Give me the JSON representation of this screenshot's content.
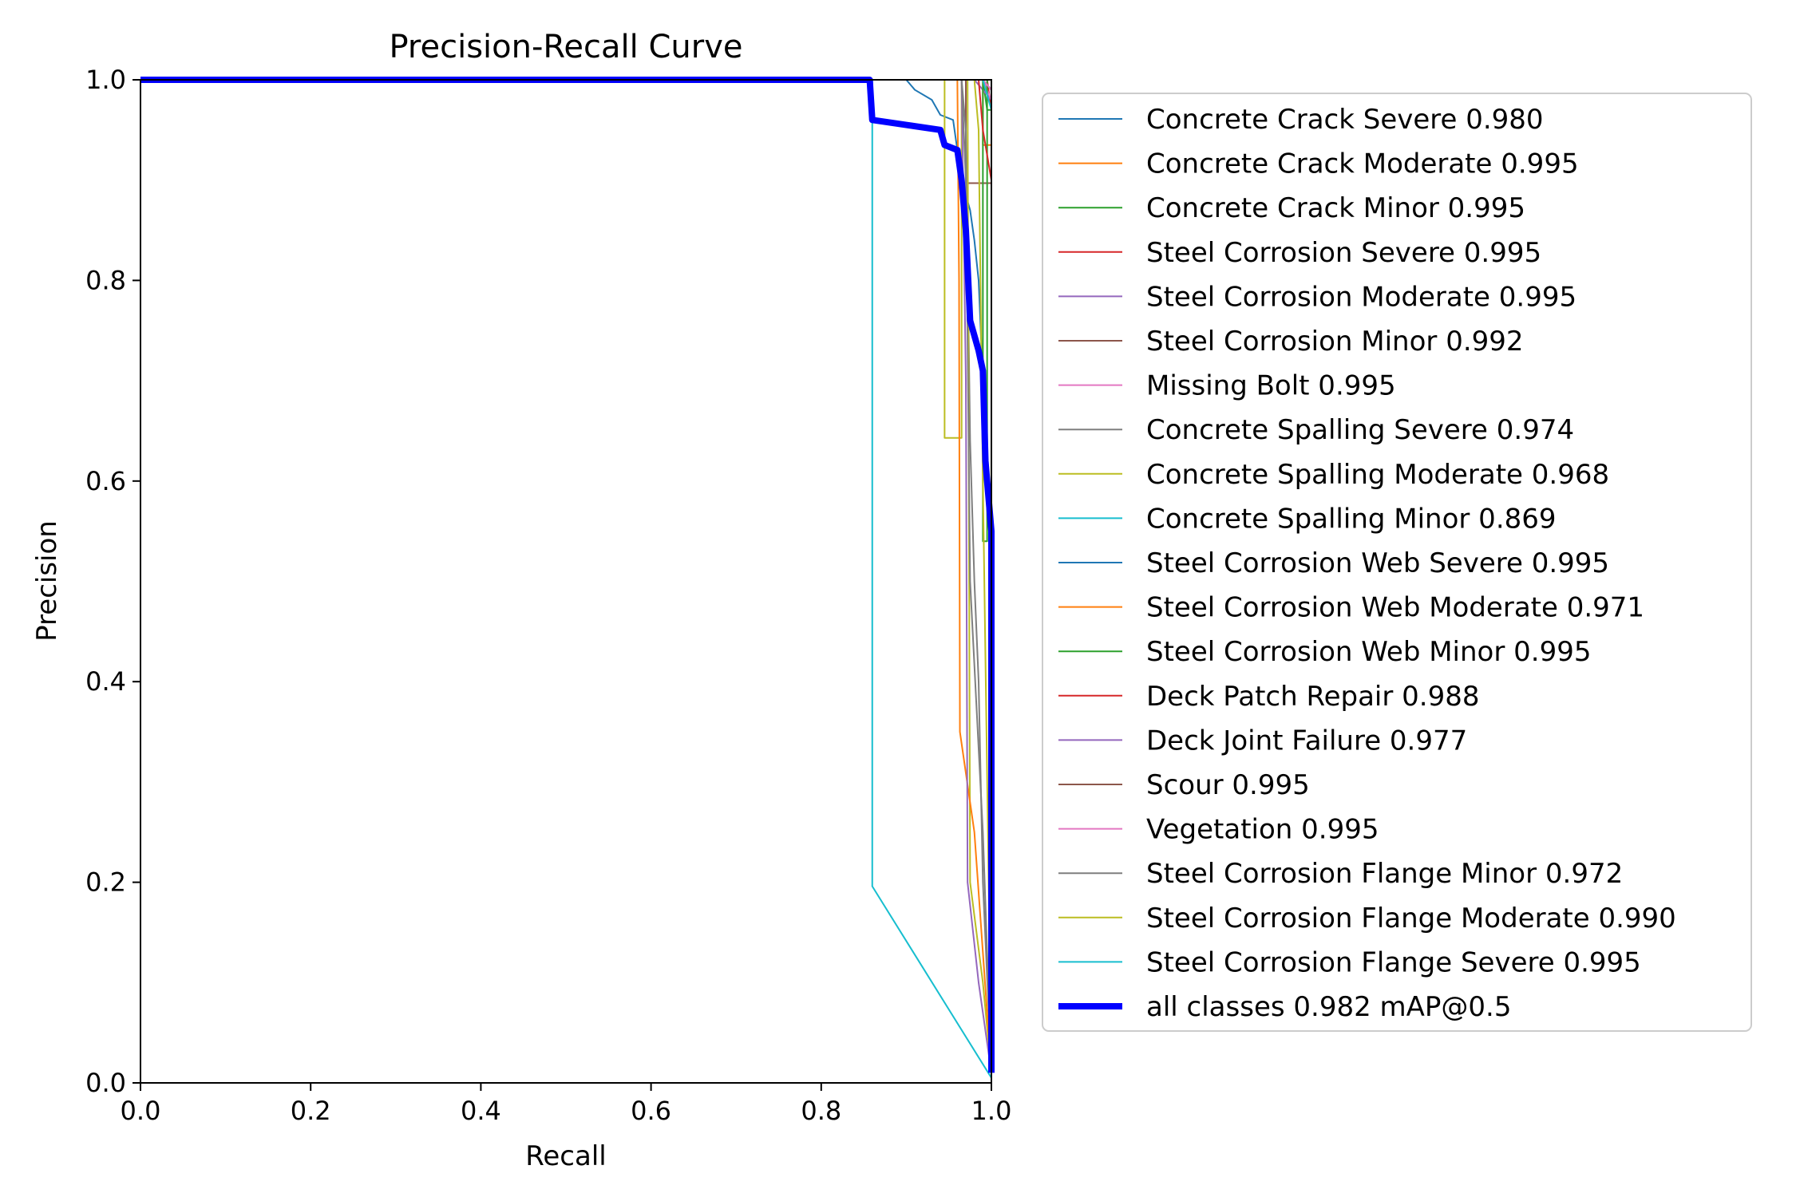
{
  "chart_data": {
    "type": "line",
    "title": "Precision-Recall Curve",
    "xlabel": "Recall",
    "ylabel": "Precision",
    "xlim": [
      0,
      1
    ],
    "ylim": [
      0,
      1
    ],
    "xticks": [
      "0.0",
      "0.2",
      "0.4",
      "0.6",
      "0.8",
      "1.0"
    ],
    "yticks": [
      "0.0",
      "0.2",
      "0.4",
      "0.6",
      "0.8",
      "1.0"
    ],
    "grid": false,
    "legend_position": "outside-right",
    "series": [
      {
        "name": "Concrete Crack Severe 0.980",
        "color": "#1f77b4",
        "points": [
          [
            0,
            1
          ],
          [
            0.9,
            1
          ],
          [
            0.91,
            0.99
          ],
          [
            0.93,
            0.98
          ],
          [
            0.94,
            0.965
          ],
          [
            0.955,
            0.96
          ],
          [
            0.96,
            0.93
          ],
          [
            0.965,
            0.9
          ],
          [
            0.975,
            0.87
          ],
          [
            0.98,
            0.84
          ],
          [
            0.985,
            0.8
          ],
          [
            0.99,
            0.7
          ],
          [
            0.995,
            0.6
          ],
          [
            1,
            0.55
          ],
          [
            1,
            0.01
          ]
        ]
      },
      {
        "name": "Concrete Crack Moderate 0.995",
        "color": "#ff7f0e",
        "points": [
          [
            0,
            1
          ],
          [
            0.99,
            1
          ],
          [
            0.99,
            0.935
          ],
          [
            1,
            0.935
          ],
          [
            1,
            0.01
          ]
        ]
      },
      {
        "name": "Concrete Crack Minor 0.995",
        "color": "#2ca02c",
        "points": [
          [
            0,
            1
          ],
          [
            0.99,
            1
          ],
          [
            0.995,
            0.97
          ],
          [
            1,
            0.97
          ],
          [
            1,
            0.01
          ]
        ]
      },
      {
        "name": "Steel Corrosion Severe 0.995",
        "color": "#d62728",
        "points": [
          [
            0,
            1
          ],
          [
            0.995,
            1
          ],
          [
            1,
            0.97
          ],
          [
            1,
            0.01
          ]
        ]
      },
      {
        "name": "Steel Corrosion Moderate 0.995",
        "color": "#9467bd",
        "points": [
          [
            0,
            1
          ],
          [
            0.98,
            1
          ],
          [
            0.99,
            0.99
          ],
          [
            1,
            0.98
          ],
          [
            1,
            0.01
          ]
        ]
      },
      {
        "name": "Steel Corrosion Minor 0.992",
        "color": "#8c564b",
        "points": [
          [
            0,
            1
          ],
          [
            0.97,
            1
          ],
          [
            0.97,
            0.897
          ],
          [
            1,
            0.897
          ],
          [
            1,
            0.01
          ]
        ]
      },
      {
        "name": "Missing Bolt 0.995",
        "color": "#e377c2",
        "points": [
          [
            0,
            1
          ],
          [
            0.99,
            1
          ],
          [
            1,
            0.98
          ],
          [
            1,
            0.01
          ]
        ]
      },
      {
        "name": "Concrete Spalling Severe 0.974",
        "color": "#7f7f7f",
        "points": [
          [
            0,
            1
          ],
          [
            0.965,
            1
          ],
          [
            0.97,
            0.95
          ],
          [
            0.975,
            0.64
          ],
          [
            0.98,
            0.5
          ],
          [
            0.985,
            0.4
          ],
          [
            0.99,
            0.2
          ],
          [
            1,
            0.01
          ]
        ]
      },
      {
        "name": "Concrete Spalling Moderate 0.968",
        "color": "#bcbd22",
        "points": [
          [
            0,
            1
          ],
          [
            0.945,
            1
          ],
          [
            0.945,
            0.643
          ],
          [
            0.965,
            0.643
          ],
          [
            0.965,
            1
          ],
          [
            0.972,
            1
          ],
          [
            0.975,
            0.2
          ],
          [
            0.99,
            0.1
          ],
          [
            1,
            0.01
          ]
        ]
      },
      {
        "name": "Concrete Spalling Minor 0.869",
        "color": "#17becf",
        "points": [
          [
            0,
            1
          ],
          [
            0.86,
            1
          ],
          [
            0.86,
            0.196
          ],
          [
            1,
            0.005
          ]
        ]
      },
      {
        "name": "Steel Corrosion Web Severe 0.995",
        "color": "#1f77b4",
        "points": [
          [
            0,
            1
          ],
          [
            0.99,
            1
          ],
          [
            1,
            0.99
          ],
          [
            1,
            0.01
          ]
        ]
      },
      {
        "name": "Steel Corrosion Web Moderate 0.971",
        "color": "#ff7f0e",
        "points": [
          [
            0,
            1
          ],
          [
            0.96,
            1
          ],
          [
            0.962,
            0.8
          ],
          [
            0.963,
            0.35
          ],
          [
            0.98,
            0.25
          ],
          [
            1,
            0.01
          ]
        ]
      },
      {
        "name": "Steel Corrosion Web Minor 0.995",
        "color": "#2ca02c",
        "points": [
          [
            0,
            1
          ],
          [
            0.99,
            1
          ],
          [
            0.99,
            0.54
          ],
          [
            0.995,
            0.54
          ],
          [
            0.995,
            1
          ],
          [
            1,
            1
          ],
          [
            1,
            0.01
          ]
        ]
      },
      {
        "name": "Deck Patch Repair 0.988",
        "color": "#d62728",
        "points": [
          [
            0,
            1
          ],
          [
            0.985,
            1
          ],
          [
            0.99,
            0.95
          ],
          [
            1,
            0.9
          ],
          [
            1,
            0.01
          ]
        ]
      },
      {
        "name": "Deck Joint Failure 0.977",
        "color": "#9467bd",
        "points": [
          [
            0,
            1
          ],
          [
            0.965,
            1
          ],
          [
            0.97,
            0.7
          ],
          [
            0.972,
            0.2
          ],
          [
            0.985,
            0.1
          ],
          [
            1,
            0.01
          ]
        ]
      },
      {
        "name": "Scour 0.995",
        "color": "#8c564b",
        "points": [
          [
            0,
            1
          ],
          [
            0.99,
            1
          ],
          [
            1,
            0.99
          ],
          [
            1,
            0.01
          ]
        ]
      },
      {
        "name": "Vegetation 0.995",
        "color": "#e377c2",
        "points": [
          [
            0,
            1
          ],
          [
            0.99,
            1
          ],
          [
            1,
            0.99
          ],
          [
            1,
            0.01
          ]
        ]
      },
      {
        "name": "Steel Corrosion Flange Minor 0.972",
        "color": "#7f7f7f",
        "points": [
          [
            0,
            1
          ],
          [
            0.965,
            1
          ],
          [
            0.97,
            0.9
          ],
          [
            0.975,
            0.5
          ],
          [
            0.99,
            0.25
          ],
          [
            1,
            0.01
          ]
        ]
      },
      {
        "name": "Steel Corrosion Flange Moderate 0.990",
        "color": "#bcbd22",
        "points": [
          [
            0,
            1
          ],
          [
            0.98,
            1
          ],
          [
            0.985,
            0.95
          ],
          [
            0.99,
            0.6
          ],
          [
            1,
            0.01
          ]
        ]
      },
      {
        "name": "Steel Corrosion Flange Severe 0.995",
        "color": "#17becf",
        "points": [
          [
            0,
            1
          ],
          [
            0.99,
            1
          ],
          [
            1,
            0.97
          ],
          [
            1,
            0.01
          ]
        ]
      },
      {
        "name": "all classes 0.982 mAP@0.5",
        "color": "#0000ff",
        "bold": true,
        "points": [
          [
            0,
            1
          ],
          [
            0.857,
            1
          ],
          [
            0.86,
            0.96
          ],
          [
            0.9,
            0.955
          ],
          [
            0.94,
            0.95
          ],
          [
            0.945,
            0.935
          ],
          [
            0.96,
            0.93
          ],
          [
            0.965,
            0.9
          ],
          [
            0.97,
            0.85
          ],
          [
            0.975,
            0.76
          ],
          [
            0.985,
            0.73
          ],
          [
            0.99,
            0.71
          ],
          [
            0.993,
            0.62
          ],
          [
            1,
            0.55
          ],
          [
            1,
            0.01
          ]
        ]
      }
    ]
  }
}
